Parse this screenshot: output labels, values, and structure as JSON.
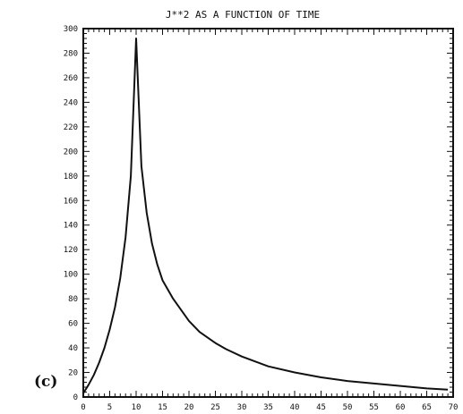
{
  "chart_data": {
    "type": "line",
    "title": "J**2 AS A FUNCTION OF TIME",
    "panel_label": "(c)",
    "xlabel": "",
    "ylabel": "",
    "xlim": [
      0,
      70
    ],
    "ylim": [
      0,
      300
    ],
    "x_ticks": [
      0,
      5,
      10,
      15,
      20,
      25,
      30,
      35,
      40,
      45,
      50,
      55,
      60,
      65,
      70
    ],
    "y_ticks": [
      0,
      20,
      40,
      60,
      80,
      100,
      120,
      140,
      160,
      180,
      200,
      220,
      240,
      260,
      280,
      300
    ],
    "y_tick_labels": [
      "0",
      "20",
      "40",
      "60",
      "80",
      "100",
      "120",
      "140",
      "160",
      "180",
      "200",
      "220",
      "240",
      "260",
      "280",
      "300"
    ],
    "grid": false,
    "series": [
      {
        "x": [
          0,
          1,
          2,
          3,
          4,
          5,
          6,
          7,
          8,
          9,
          10,
          11,
          12,
          13,
          14,
          15,
          17,
          20,
          22,
          25,
          27,
          30,
          35,
          40,
          45,
          50,
          55,
          60,
          65,
          69
        ],
        "y": [
          3,
          10,
          18,
          28,
          40,
          55,
          73,
          97,
          130,
          180,
          292,
          188,
          150,
          125,
          108,
          95,
          80,
          62,
          53,
          44,
          39,
          33,
          25,
          20,
          16,
          13,
          11,
          9,
          7,
          6
        ]
      }
    ]
  }
}
